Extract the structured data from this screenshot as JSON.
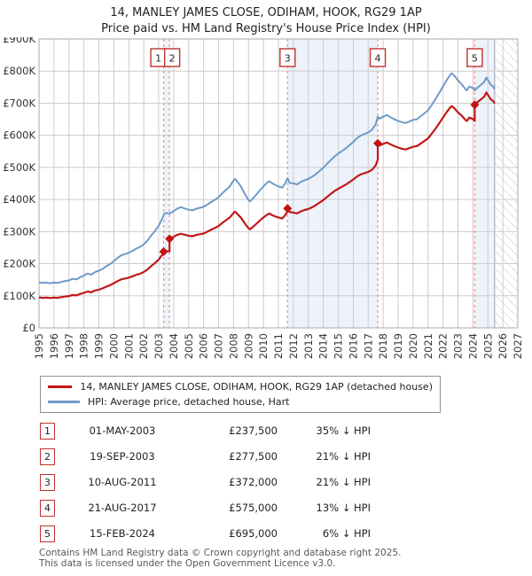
{
  "title": {
    "line1": "14, MANLEY JAMES CLOSE, ODIHAM, HOOK, RG29 1AP",
    "line2": "Price paid vs. HM Land Registry's House Price Index (HPI)"
  },
  "legend": {
    "items": [
      {
        "label": "14, MANLEY JAMES CLOSE, ODIHAM, HOOK, RG29 1AP (detached house)",
        "color": "#c21717"
      },
      {
        "label": "HPI: Average price, detached house, Hart",
        "color": "#6e9bc9"
      }
    ]
  },
  "sales": [
    {
      "num": "1",
      "date": "01-MAY-2003",
      "price": "£237,500",
      "vs_hpi": "35% ↓ HPI",
      "year": 2003.33,
      "value_k": 237.5,
      "box_dx": -6
    },
    {
      "num": "2",
      "date": "19-SEP-2003",
      "price": "£277,500",
      "vs_hpi": "21% ↓ HPI",
      "year": 2003.72,
      "value_k": 277.5,
      "box_dx": 3
    },
    {
      "num": "3",
      "date": "10-AUG-2011",
      "price": "£372,000",
      "vs_hpi": "21% ↓ HPI",
      "year": 2011.61,
      "value_k": 372,
      "box_dx": 0
    },
    {
      "num": "4",
      "date": "21-AUG-2017",
      "price": "£575,000",
      "vs_hpi": "13% ↓ HPI",
      "year": 2017.64,
      "value_k": 575,
      "box_dx": 0
    },
    {
      "num": "5",
      "date": "15-FEB-2024",
      "price": "£695,000",
      "vs_hpi": "6% ↓ HPI",
      "year": 2024.12,
      "value_k": 695,
      "box_dx": 0
    }
  ],
  "footer": {
    "line1": "Contains HM Land Registry data © Crown copyright and database right 2025.",
    "line2": "This data is licensed under the Open Government Licence v3.0."
  },
  "chart_data": {
    "type": "line",
    "title": "Price paid vs. HM Land Registry's House Price Index (HPI)",
    "xlabel": "",
    "ylabel": "",
    "xlim": [
      1995,
      2027
    ],
    "ylim": [
      0,
      900
    ],
    "y_unit": "£K",
    "grid": true,
    "legend_position": "below",
    "x_ticks": [
      1995,
      1996,
      1997,
      1998,
      1999,
      2000,
      2001,
      2002,
      2003,
      2004,
      2005,
      2006,
      2007,
      2008,
      2009,
      2010,
      2011,
      2012,
      2013,
      2014,
      2015,
      2016,
      2017,
      2018,
      2019,
      2020,
      2021,
      2022,
      2023,
      2024,
      2025,
      2026,
      2027
    ],
    "y_tick_labels": [
      "£0",
      "£100K",
      "£200K",
      "£300K",
      "£400K",
      "£500K",
      "£600K",
      "£700K",
      "£800K",
      "£900K"
    ],
    "colors": {
      "hpi_line": "#6e9bc9",
      "property_line": "#c21717",
      "marker": "#c21212",
      "sale_dashed_line": "#f09090",
      "ownership_band": "#edf2fb",
      "grid": "#cccccc",
      "plot_border": "#aaaaaa",
      "hatch": "#c4c4ca",
      "axis_text": "#333333"
    },
    "series": [
      {
        "name": "HPI: Average price, detached house, Hart",
        "unit": "£K",
        "points": [
          [
            1995.0,
            142
          ],
          [
            1995.25,
            140
          ],
          [
            1995.5,
            141
          ],
          [
            1995.75,
            139
          ],
          [
            1996.0,
            141
          ],
          [
            1996.25,
            140
          ],
          [
            1996.5,
            143
          ],
          [
            1996.75,
            146
          ],
          [
            1997.0,
            148
          ],
          [
            1997.25,
            153
          ],
          [
            1997.5,
            151
          ],
          [
            1997.75,
            158
          ],
          [
            1998.0,
            163
          ],
          [
            1998.25,
            169
          ],
          [
            1998.5,
            166
          ],
          [
            1998.75,
            174
          ],
          [
            1999.0,
            178
          ],
          [
            1999.25,
            184
          ],
          [
            1999.5,
            192
          ],
          [
            1999.75,
            199
          ],
          [
            2000.0,
            208
          ],
          [
            2000.25,
            218
          ],
          [
            2000.5,
            226
          ],
          [
            2000.75,
            230
          ],
          [
            2001.0,
            234
          ],
          [
            2001.25,
            240
          ],
          [
            2001.5,
            247
          ],
          [
            2001.75,
            252
          ],
          [
            2002.0,
            260
          ],
          [
            2002.25,
            272
          ],
          [
            2002.5,
            288
          ],
          [
            2002.75,
            302
          ],
          [
            2003.0,
            318
          ],
          [
            2003.25,
            342
          ],
          [
            2003.37,
            355
          ],
          [
            2003.5,
            358
          ],
          [
            2003.72,
            356
          ],
          [
            2004.0,
            364
          ],
          [
            2004.25,
            372
          ],
          [
            2004.5,
            376
          ],
          [
            2004.75,
            372
          ],
          [
            2005.0,
            368
          ],
          [
            2005.25,
            366
          ],
          [
            2005.5,
            371
          ],
          [
            2005.75,
            374
          ],
          [
            2006.0,
            377
          ],
          [
            2006.25,
            384
          ],
          [
            2006.5,
            392
          ],
          [
            2006.75,
            399
          ],
          [
            2007.0,
            407
          ],
          [
            2007.25,
            419
          ],
          [
            2007.5,
            430
          ],
          [
            2007.75,
            441
          ],
          [
            2008.0,
            459
          ],
          [
            2008.1,
            464
          ],
          [
            2008.25,
            456
          ],
          [
            2008.5,
            440
          ],
          [
            2008.75,
            418
          ],
          [
            2009.0,
            398
          ],
          [
            2009.1,
            394
          ],
          [
            2009.25,
            401
          ],
          [
            2009.5,
            414
          ],
          [
            2009.75,
            428
          ],
          [
            2010.0,
            441
          ],
          [
            2010.25,
            452
          ],
          [
            2010.4,
            457
          ],
          [
            2010.6,
            450
          ],
          [
            2010.75,
            446
          ],
          [
            2011.0,
            441
          ],
          [
            2011.25,
            437
          ],
          [
            2011.45,
            450
          ],
          [
            2011.61,
            466
          ],
          [
            2011.75,
            452
          ],
          [
            2012.0,
            450
          ],
          [
            2012.25,
            447
          ],
          [
            2012.5,
            455
          ],
          [
            2012.75,
            460
          ],
          [
            2013.0,
            464
          ],
          [
            2013.25,
            471
          ],
          [
            2013.5,
            479
          ],
          [
            2013.75,
            489
          ],
          [
            2014.0,
            499
          ],
          [
            2014.25,
            511
          ],
          [
            2014.5,
            523
          ],
          [
            2014.75,
            534
          ],
          [
            2015.0,
            543
          ],
          [
            2015.25,
            551
          ],
          [
            2015.5,
            559
          ],
          [
            2015.75,
            569
          ],
          [
            2016.0,
            579
          ],
          [
            2016.25,
            591
          ],
          [
            2016.5,
            599
          ],
          [
            2016.75,
            604
          ],
          [
            2017.0,
            609
          ],
          [
            2017.25,
            617
          ],
          [
            2017.5,
            634
          ],
          [
            2017.64,
            658
          ],
          [
            2017.75,
            652
          ],
          [
            2018.0,
            658
          ],
          [
            2018.25,
            663
          ],
          [
            2018.5,
            656
          ],
          [
            2018.75,
            650
          ],
          [
            2019.0,
            645
          ],
          [
            2019.25,
            641
          ],
          [
            2019.5,
            638
          ],
          [
            2019.75,
            643
          ],
          [
            2020.0,
            648
          ],
          [
            2020.25,
            650
          ],
          [
            2020.5,
            659
          ],
          [
            2020.75,
            668
          ],
          [
            2021.0,
            678
          ],
          [
            2021.25,
            695
          ],
          [
            2021.5,
            713
          ],
          [
            2021.75,
            732
          ],
          [
            2022.0,
            752
          ],
          [
            2022.25,
            772
          ],
          [
            2022.5,
            790
          ],
          [
            2022.6,
            793
          ],
          [
            2022.75,
            786
          ],
          [
            2023.0,
            771
          ],
          [
            2023.25,
            759
          ],
          [
            2023.5,
            744
          ],
          [
            2023.6,
            740
          ],
          [
            2023.75,
            752
          ],
          [
            2024.0,
            747
          ],
          [
            2024.12,
            740
          ],
          [
            2024.25,
            746
          ],
          [
            2024.5,
            756
          ],
          [
            2024.75,
            766
          ],
          [
            2024.9,
            780
          ],
          [
            2025.0,
            772
          ],
          [
            2025.2,
            757
          ],
          [
            2025.35,
            752
          ],
          [
            2025.45,
            744
          ]
        ]
      },
      {
        "name": "14, MANLEY JAMES CLOSE, ODIHAM, HOOK, RG29 1AP (detached house)",
        "unit": "£K",
        "derived": "ratio_of_hpi_between_sales",
        "segments": [
          {
            "from": 1995.0,
            "to": 2003.72,
            "ratio": 0.669
          },
          {
            "from": 2003.72,
            "to": 2011.61,
            "ratio": 0.78
          },
          {
            "from": 2011.61,
            "to": 2017.64,
            "ratio": 0.798
          },
          {
            "from": 2017.64,
            "to": 2024.12,
            "ratio": 0.871
          },
          {
            "from": 2024.12,
            "to": 2025.45,
            "ratio": 0.94
          }
        ]
      }
    ],
    "ownership_bands": [
      {
        "from": 2003.33,
        "to": 2003.72
      },
      {
        "from": 2011.61,
        "to": 2017.64
      },
      {
        "from": 2024.12,
        "to": 2025.45
      }
    ],
    "future_hatch": {
      "from": 2025.45,
      "to": 2027
    }
  }
}
